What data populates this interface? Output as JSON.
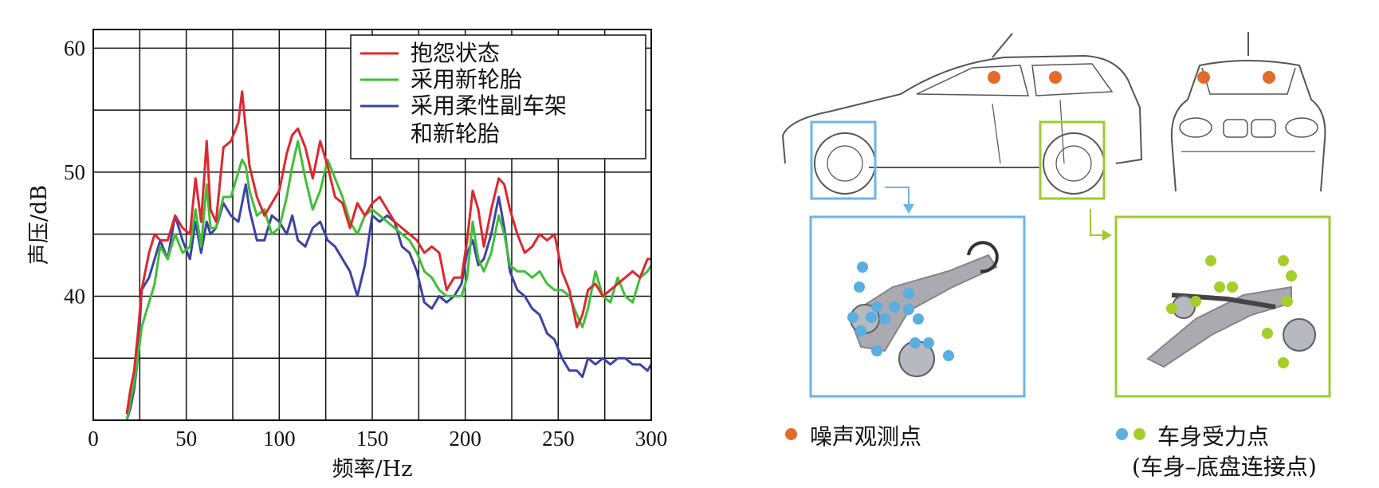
{
  "chart_data": {
    "type": "line",
    "title": "",
    "xlabel": "频率/Hz",
    "ylabel": "声压/dB",
    "xlim": [
      0,
      300
    ],
    "ylim": [
      30,
      61.5
    ],
    "xticks": [
      0,
      50,
      100,
      150,
      200,
      250,
      300
    ],
    "yticks": [
      40,
      50,
      60
    ],
    "grid": true,
    "legend_position": "top-right",
    "series": [
      {
        "name": "抱怨状态",
        "color": "#e0262e",
        "x": [
          18,
          20,
          22,
          24,
          26,
          28,
          30,
          33,
          36,
          40,
          44,
          48,
          52,
          55,
          58,
          61,
          63,
          66,
          70,
          74,
          78,
          80,
          82,
          84,
          88,
          92,
          96,
          100,
          104,
          107,
          110,
          114,
          118,
          122,
          126,
          130,
          134,
          138,
          142,
          146,
          150,
          154,
          158,
          162,
          166,
          170,
          174,
          178,
          182,
          186,
          190,
          194,
          198,
          201,
          204,
          207,
          210,
          214,
          218,
          221,
          224,
          228,
          232,
          236,
          240,
          244,
          248,
          252,
          256,
          260,
          263,
          266,
          270,
          274,
          278,
          282,
          286,
          290,
          294,
          298,
          300
        ],
        "y": [
          30.5,
          32.5,
          34,
          37,
          40.5,
          42,
          43.5,
          45,
          44.5,
          44.5,
          46.5,
          45.5,
          45,
          49.5,
          46,
          52.5,
          47,
          46,
          52,
          52.5,
          54,
          56.5,
          53.5,
          50.5,
          48,
          46.5,
          47.5,
          48.5,
          51.5,
          53,
          53.5,
          52,
          49.5,
          52.5,
          50.5,
          48,
          47.5,
          45.5,
          47.5,
          46.5,
          47.5,
          48,
          47,
          46,
          45.5,
          45,
          44.5,
          43.5,
          44,
          43.5,
          40.5,
          41.5,
          41.5,
          44.5,
          48.5,
          47,
          44,
          47,
          49.5,
          49,
          47,
          45,
          43.5,
          44,
          45,
          44.5,
          45,
          42,
          40.5,
          37.5,
          38.5,
          40.5,
          41,
          40,
          40.5,
          41,
          41.5,
          42,
          41.5,
          43,
          43
        ]
      },
      {
        "name": "采用新轮胎",
        "color": "#3fbf37",
        "x": [
          18,
          20,
          22,
          24,
          26,
          28,
          30,
          33,
          36,
          40,
          44,
          48,
          52,
          55,
          58,
          61,
          63,
          66,
          70,
          74,
          78,
          80,
          82,
          84,
          88,
          92,
          96,
          100,
          104,
          107,
          110,
          114,
          118,
          122,
          126,
          130,
          134,
          138,
          142,
          146,
          150,
          154,
          158,
          162,
          166,
          170,
          174,
          178,
          182,
          186,
          190,
          194,
          198,
          201,
          204,
          207,
          210,
          214,
          218,
          221,
          224,
          228,
          232,
          236,
          240,
          244,
          248,
          252,
          256,
          260,
          263,
          266,
          270,
          274,
          278,
          282,
          286,
          290,
          294,
          298,
          300
        ],
        "y": [
          30,
          31.5,
          33,
          35,
          37.5,
          38.5,
          39.5,
          41,
          44,
          43,
          45,
          43.5,
          44,
          47,
          44,
          49,
          45.5,
          45.5,
          48,
          48,
          50,
          51,
          50.5,
          48.5,
          46.5,
          47,
          45,
          45.5,
          48,
          50.5,
          52.5,
          49.5,
          47,
          48.5,
          51,
          49.5,
          48,
          46,
          45,
          46.5,
          47,
          46.5,
          46,
          45.5,
          45,
          44.5,
          43.5,
          42,
          41.5,
          40.5,
          40,
          40,
          40,
          41.5,
          46,
          43,
          42,
          43.5,
          46.5,
          45,
          42.5,
          42,
          42,
          41.5,
          42,
          41,
          40.5,
          40.5,
          40,
          38.5,
          37.5,
          39,
          42,
          40,
          39.5,
          41.5,
          40,
          39.5,
          41.5,
          42,
          42.5
        ]
      },
      {
        "name": "采用柔性副车架\n和新轮胎",
        "color": "#3c43a6",
        "x": [
          18,
          20,
          22,
          24,
          26,
          28,
          30,
          33,
          36,
          40,
          44,
          48,
          52,
          55,
          58,
          61,
          63,
          66,
          70,
          74,
          78,
          80,
          82,
          84,
          88,
          92,
          96,
          100,
          104,
          107,
          110,
          114,
          118,
          122,
          126,
          130,
          134,
          138,
          142,
          146,
          150,
          154,
          158,
          162,
          166,
          170,
          174,
          178,
          182,
          186,
          190,
          194,
          198,
          201,
          204,
          207,
          210,
          214,
          218,
          221,
          224,
          228,
          232,
          236,
          240,
          244,
          248,
          252,
          256,
          260,
          263,
          266,
          270,
          274,
          278,
          282,
          286,
          290,
          294,
          298,
          300
        ],
        "y": [
          30,
          31,
          32.5,
          35,
          40.5,
          41,
          41.5,
          43,
          44.5,
          43,
          46.5,
          44.5,
          43,
          46,
          43.5,
          46,
          45,
          45.5,
          47.5,
          46.5,
          46,
          47.5,
          49,
          47,
          44.5,
          44.5,
          46.5,
          46,
          45,
          46.5,
          44.5,
          44,
          45.5,
          46,
          44.5,
          44,
          43,
          42,
          40,
          42.5,
          46.5,
          46,
          46.5,
          46,
          44,
          43.5,
          42,
          39.5,
          39,
          40,
          39.5,
          40,
          41,
          43.5,
          44.5,
          42.5,
          43,
          45,
          48,
          45.5,
          42,
          40.5,
          40,
          39,
          38.5,
          37,
          36.5,
          35,
          34,
          34,
          33.5,
          35,
          34.5,
          35,
          34.5,
          35,
          35,
          34.5,
          34.5,
          34,
          34.5
        ]
      }
    ]
  },
  "figure": {
    "legend_noise": "噪声观测点",
    "legend_force": "车身受力点",
    "legend_force_sub": "(车身–底盘连接点)",
    "colors": {
      "noise": "#e46a2a",
      "blue": "#5aaee0",
      "green": "#a6cd2a",
      "box_blue": "#6ab6e4",
      "box_green": "#9ccc2c"
    }
  }
}
